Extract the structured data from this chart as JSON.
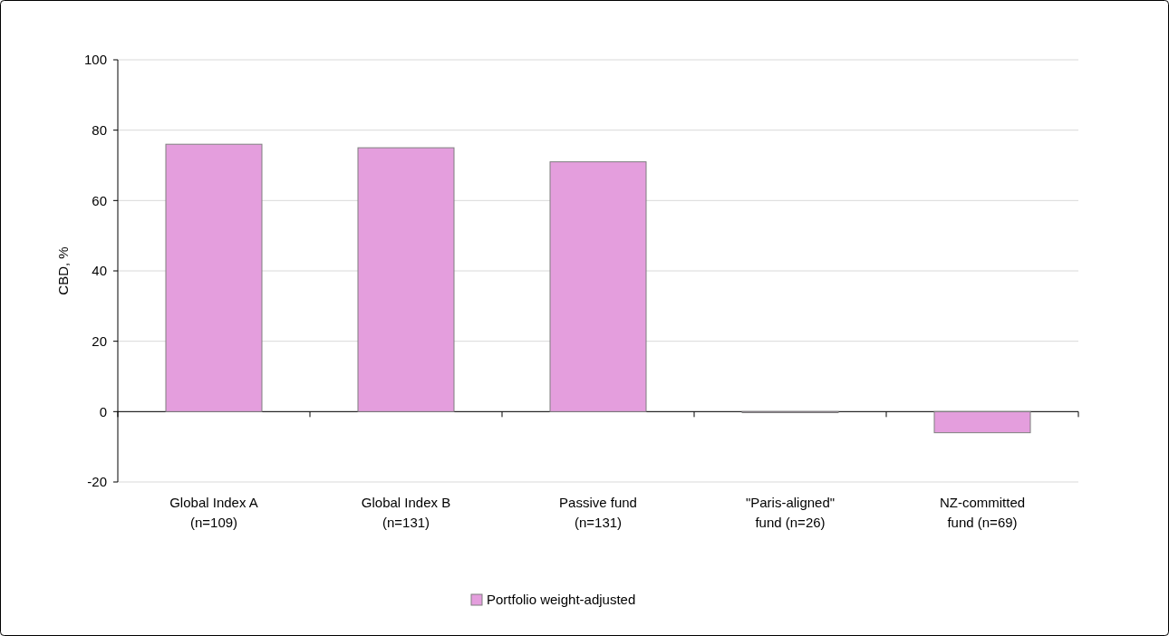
{
  "chart_data": {
    "type": "bar",
    "ylabel": "CBD, %",
    "categories": [
      "Global Index A\n(n=109)",
      "Global Index B\n(n=131)",
      "Passive fund\n(n=131)",
      "\"Paris-aligned\"\nfund (n=26)",
      "NZ-committed\nfund (n=69)"
    ],
    "series": [
      {
        "name": "Portfolio weight-adjusted",
        "color": "#e49edd",
        "values": [
          76,
          75,
          71,
          -0.3,
          -6
        ]
      }
    ],
    "ylim": [
      -20,
      100
    ],
    "yticks": [
      -20,
      0,
      20,
      40,
      60,
      80,
      100
    ],
    "grid": "y",
    "legend": "bottom"
  }
}
